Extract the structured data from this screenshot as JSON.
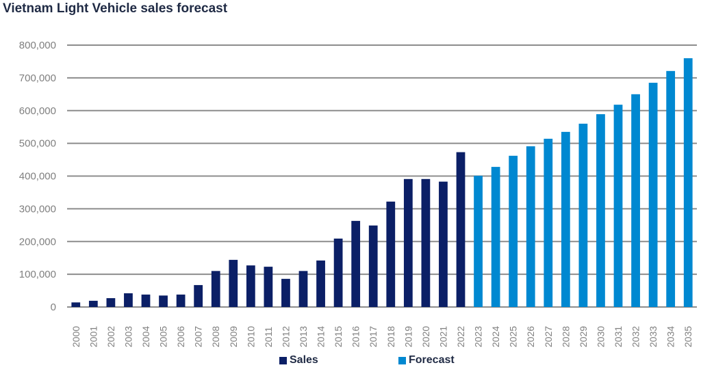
{
  "chart_data": {
    "type": "bar",
    "title": "Vietnam Light Vehicle sales forecast",
    "xlabel": "",
    "ylabel": "",
    "ylim": [
      0,
      800000
    ],
    "yticks": [
      0,
      100000,
      200000,
      300000,
      400000,
      500000,
      600000,
      700000,
      800000
    ],
    "ytick_labels": [
      "0",
      "100,000",
      "200,000",
      "300,000",
      "400,000",
      "500,000",
      "600,000",
      "700,000",
      "800,000"
    ],
    "grid": true,
    "legend_position": "bottom",
    "categories": [
      "2000",
      "2001",
      "2002",
      "2003",
      "2004",
      "2005",
      "2006",
      "2007",
      "2008",
      "2009",
      "2010",
      "2011",
      "2012",
      "2013",
      "2014",
      "2015",
      "2016",
      "2017",
      "2018",
      "2019",
      "2020",
      "2021",
      "2022",
      "2023",
      "2024",
      "2025",
      "2026",
      "2027",
      "2028",
      "2029",
      "2030",
      "2031",
      "2032",
      "2033",
      "2034",
      "2035"
    ],
    "series": [
      {
        "name": "Sales",
        "color": "#0b1f66",
        "values": [
          14000,
          19000,
          27000,
          42000,
          38000,
          35000,
          38000,
          67000,
          110000,
          144000,
          127000,
          123000,
          86000,
          110000,
          142000,
          209000,
          263000,
          249000,
          322000,
          391000,
          391000,
          383000,
          473000,
          null,
          null,
          null,
          null,
          null,
          null,
          null,
          null,
          null,
          null,
          null,
          null,
          null
        ]
      },
      {
        "name": "Forecast",
        "color": "#0088d1",
        "values": [
          null,
          null,
          null,
          null,
          null,
          null,
          null,
          null,
          null,
          null,
          null,
          null,
          null,
          null,
          null,
          null,
          null,
          null,
          null,
          null,
          null,
          null,
          null,
          401000,
          428000,
          462000,
          491000,
          514000,
          535000,
          560000,
          589000,
          618000,
          650000,
          685000,
          721000,
          760000
        ]
      }
    ]
  }
}
